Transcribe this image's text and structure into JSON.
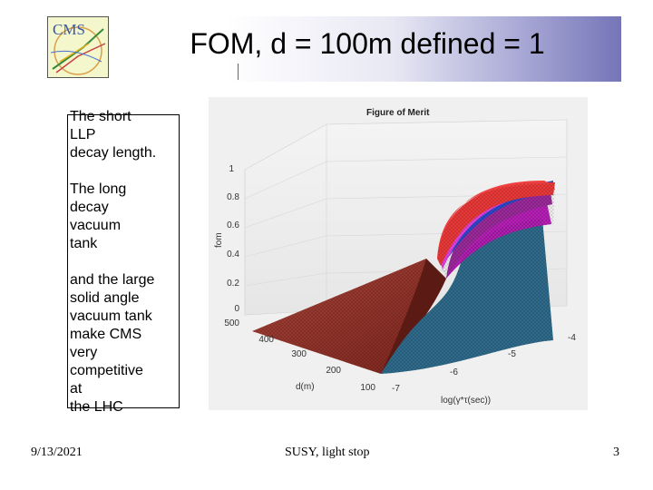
{
  "slide": {
    "title": "FOM, d = 100m defined = 1",
    "logo_text": "CMS",
    "paragraphs": [
      "The short\nLLP\ndecay length.",
      "The long\ndecay\n vacuum\ntank",
      "and the large\nsolid angle\nvacuum tank\nmake CMS\nvery\ncompetitive\nat\nthe LHC"
    ]
  },
  "figure": {
    "title": "Figure of Merit",
    "zlabel": "fom",
    "xlabel": "d(m)",
    "ylabel": "log(γ*τ(sec))",
    "z_ticks": [
      "0",
      "0.2",
      "0.4",
      "0.6",
      "0.8",
      "1"
    ],
    "x_ticks": [
      "500",
      "400",
      "300",
      "200",
      "100"
    ],
    "y_ticks": [
      "-7",
      "-6",
      "-5",
      "-4"
    ]
  },
  "footer": {
    "date": "9/13/2021",
    "center": "SUSY, light stop",
    "page": "3"
  }
}
